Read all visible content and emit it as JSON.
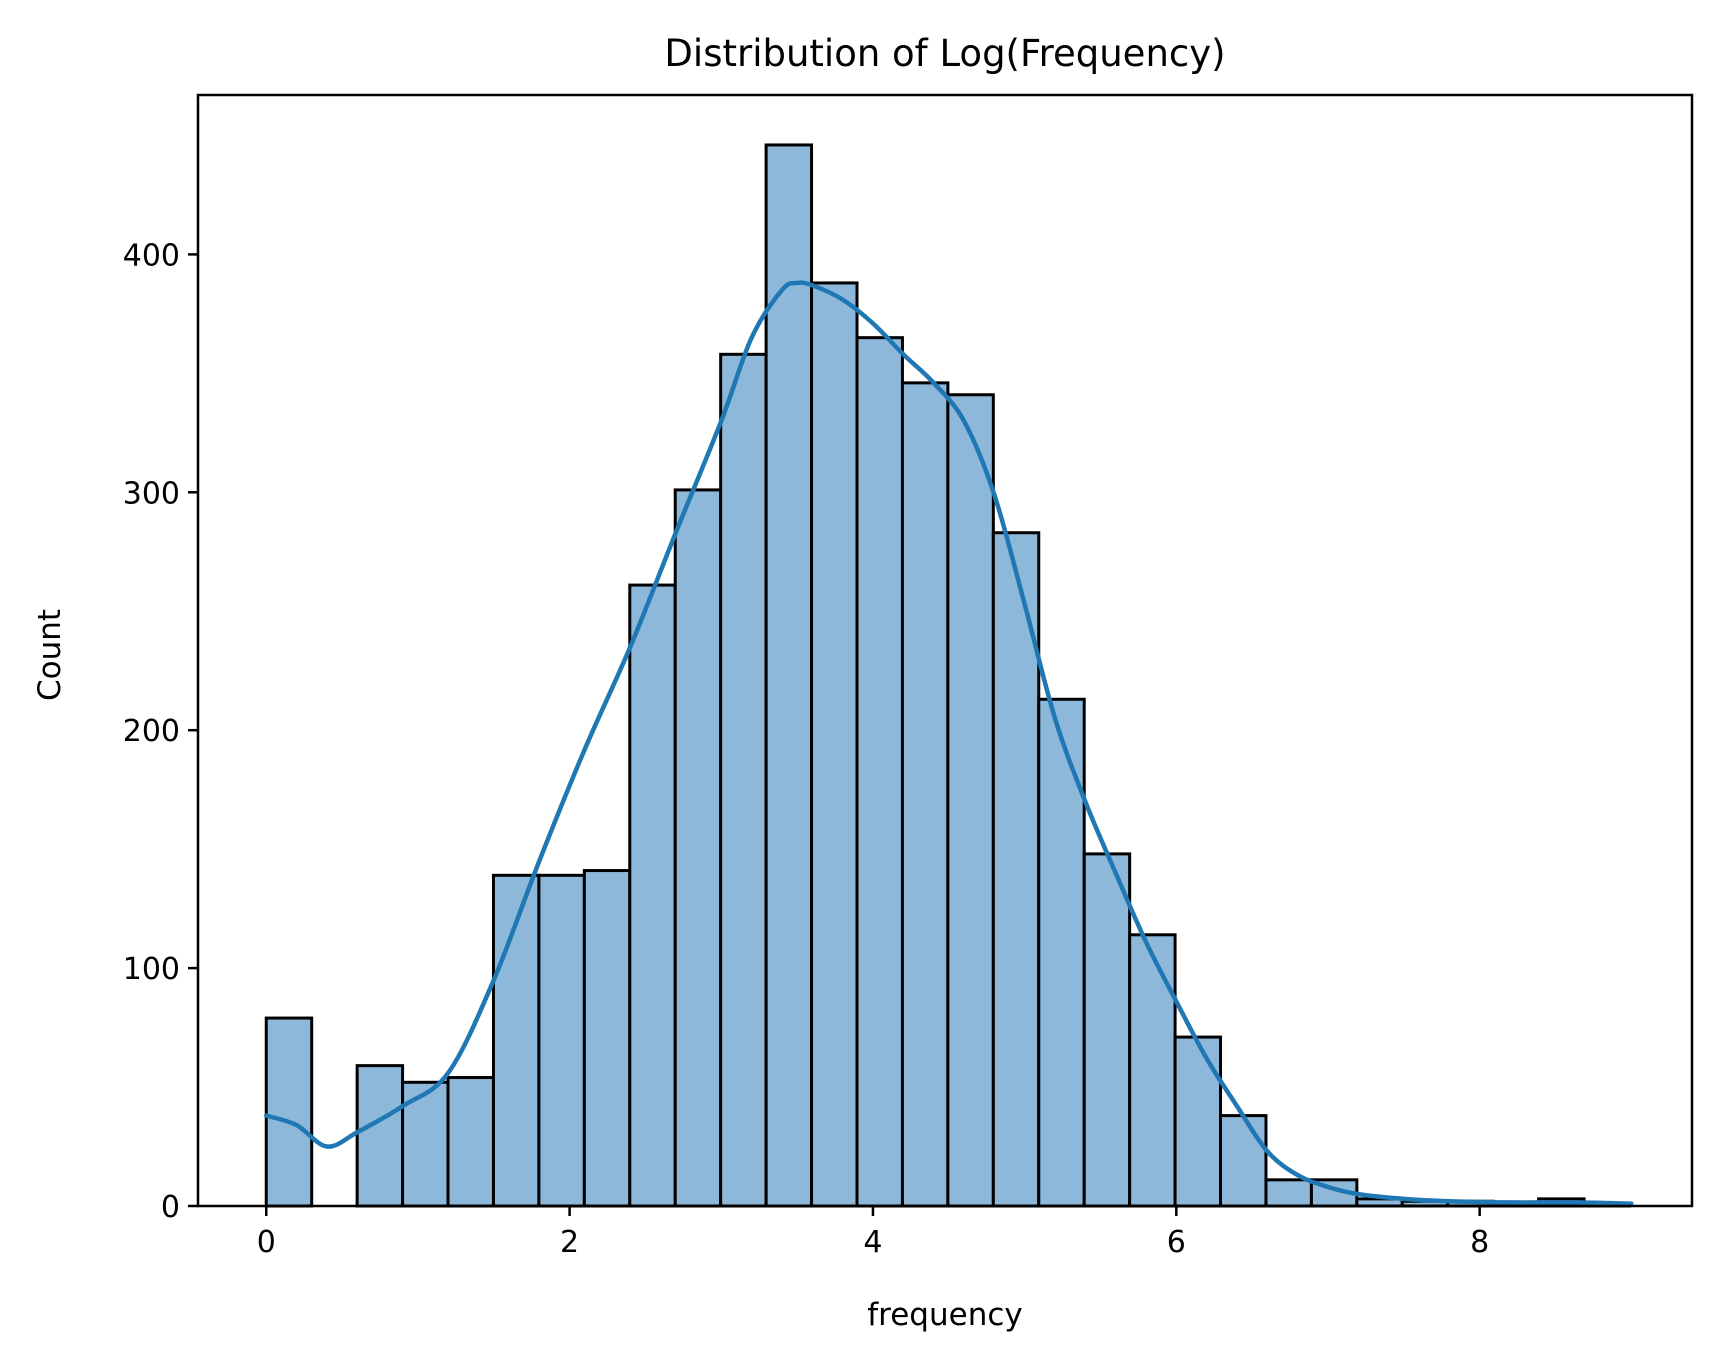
{
  "chart_data": {
    "type": "bar",
    "title": "Distribution of Log(Frequency)",
    "xlabel": "frequency",
    "ylabel": "Count",
    "xlim": [
      -0.45,
      9.4
    ],
    "ylim": [
      0,
      467
    ],
    "xticks": [
      0,
      2,
      4,
      6,
      8
    ],
    "xtick_labels": [
      "0",
      "2",
      "4",
      "6",
      "8"
    ],
    "yticks": [
      0,
      100,
      200,
      300,
      400
    ],
    "ytick_labels": [
      "0",
      "100",
      "200",
      "300",
      "400"
    ],
    "grid": false,
    "legend": "none",
    "bin_width": 0.2996,
    "bin_starts": [
      0.0,
      0.2996,
      0.5992,
      0.8988,
      1.1984,
      1.498,
      1.7976,
      2.0972,
      2.3968,
      2.6964,
      2.996,
      3.2956,
      3.5952,
      3.8948,
      4.1944,
      4.494,
      4.7936,
      5.0932,
      5.3928,
      5.6924,
      5.992,
      6.2916,
      6.5912,
      6.8908,
      7.1904,
      7.49,
      7.7896,
      8.0892,
      8.3888,
      8.6884
    ],
    "values": [
      79,
      0,
      59,
      52,
      54,
      139,
      139,
      141,
      261,
      301,
      358,
      446,
      388,
      365,
      346,
      341,
      283,
      213,
      148,
      114,
      71,
      38,
      11,
      11,
      3,
      2,
      2,
      1,
      3,
      1
    ],
    "kde": {
      "x": [
        0.0,
        0.2,
        0.4,
        0.6,
        0.9,
        1.2,
        1.5,
        1.8,
        2.1,
        2.4,
        2.7,
        3.0,
        3.2,
        3.4,
        3.5,
        3.6,
        3.8,
        4.0,
        4.2,
        4.4,
        4.6,
        4.8,
        5.0,
        5.2,
        5.4,
        5.6,
        5.8,
        6.0,
        6.2,
        6.4,
        6.6,
        6.8,
        7.0,
        7.2,
        7.5,
        7.8,
        8.2,
        8.6,
        9.0
      ],
      "y": [
        38,
        34,
        25,
        31,
        42,
        56,
        95,
        145,
        192,
        235,
        283,
        330,
        365,
        385,
        388,
        387,
        381,
        371,
        358,
        346,
        330,
        299,
        253,
        205,
        170,
        140,
        111,
        86,
        62,
        42,
        23,
        13,
        8,
        5,
        3,
        2,
        1.5,
        1.5,
        1
      ]
    },
    "colors": {
      "bar_fill": "#8eb8da",
      "bar_edge": "#000000",
      "kde_line": "#1f77b4",
      "axes": "#000000"
    }
  }
}
